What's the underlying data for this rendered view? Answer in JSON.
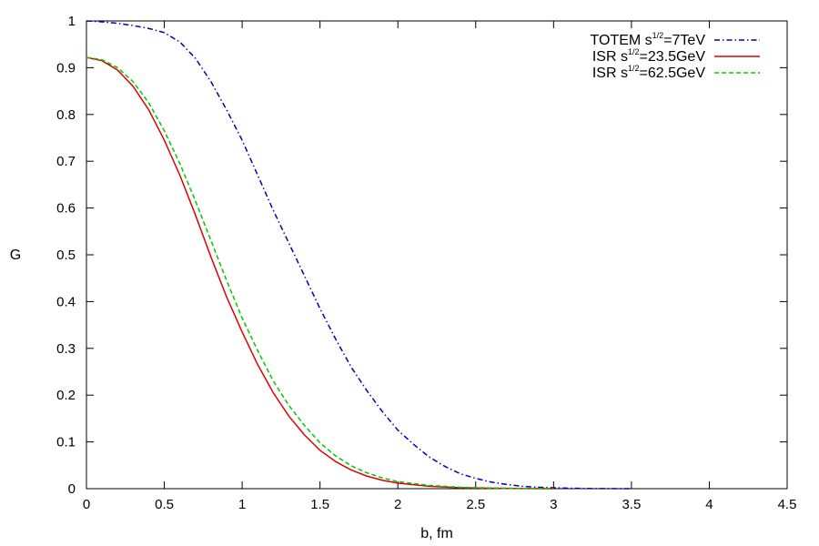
{
  "chart_data": {
    "type": "line",
    "title": "",
    "xlabel": "b, fm",
    "ylabel": "G",
    "xlim": [
      0,
      4.5
    ],
    "ylim": [
      0,
      1
    ],
    "xticks": [
      0,
      0.5,
      1,
      1.5,
      2,
      2.5,
      3,
      3.5,
      4,
      4.5
    ],
    "xtick_labels": [
      "0",
      "0.5",
      "1",
      "1.5",
      "2",
      "2.5",
      "3",
      "3.5",
      "4",
      "4.5"
    ],
    "yticks": [
      0,
      0.1,
      0.2,
      0.3,
      0.4,
      0.5,
      0.6,
      0.7,
      0.8,
      0.9,
      1
    ],
    "ytick_labels": [
      "0",
      "0.1",
      "0.2",
      "0.3",
      "0.4",
      "0.5",
      "0.6",
      "0.7",
      "0.8",
      "0.9",
      "1"
    ],
    "grid": false,
    "legend_position": "top-right",
    "series": [
      {
        "name": "TOTEM s1/2=7TeV",
        "legend_prefix": "TOTEM s",
        "legend_sup": "1/2",
        "legend_suffix": "=7TeV",
        "color": "#0000b4",
        "style": "dash-dot",
        "x": [
          0,
          0.1,
          0.2,
          0.3,
          0.4,
          0.5,
          0.6,
          0.7,
          0.8,
          0.9,
          1.0,
          1.1,
          1.2,
          1.3,
          1.4,
          1.5,
          1.6,
          1.7,
          1.8,
          1.9,
          2.0,
          2.1,
          2.2,
          2.3,
          2.4,
          2.5,
          2.6,
          2.7,
          2.8,
          2.9,
          3.0,
          3.1,
          3.2,
          3.3,
          3.4,
          3.5
        ],
        "y": [
          1.0,
          0.998,
          0.995,
          0.99,
          0.984,
          0.975,
          0.955,
          0.92,
          0.87,
          0.81,
          0.745,
          0.67,
          0.595,
          0.525,
          0.455,
          0.385,
          0.32,
          0.26,
          0.21,
          0.165,
          0.125,
          0.095,
          0.068,
          0.048,
          0.032,
          0.022,
          0.014,
          0.009,
          0.005,
          0.003,
          0.002,
          0.001,
          0.0005,
          0.0002,
          0.0001,
          0
        ]
      },
      {
        "name": "ISR s1/2=23.5GeV",
        "legend_prefix": "ISR s",
        "legend_sup": "1/2",
        "legend_suffix": "=23.5GeV",
        "color": "#e00000",
        "style": "solid",
        "x": [
          0,
          0.1,
          0.2,
          0.3,
          0.4,
          0.5,
          0.6,
          0.7,
          0.8,
          0.9,
          1.0,
          1.1,
          1.2,
          1.3,
          1.4,
          1.5,
          1.6,
          1.7,
          1.8,
          1.9,
          2.0,
          2.2,
          2.4,
          2.6,
          2.8,
          3.0
        ],
        "y": [
          0.922,
          0.915,
          0.895,
          0.86,
          0.81,
          0.745,
          0.67,
          0.585,
          0.495,
          0.41,
          0.335,
          0.265,
          0.205,
          0.155,
          0.115,
          0.082,
          0.058,
          0.04,
          0.027,
          0.018,
          0.012,
          0.005,
          0.002,
          0.001,
          0.0003,
          0
        ]
      },
      {
        "name": "ISR s1/2=62.5GeV",
        "legend_prefix": "ISR s",
        "legend_sup": "1/2",
        "legend_suffix": "=62.5GeV",
        "color": "#00c800",
        "style": "dashed",
        "x": [
          0,
          0.1,
          0.2,
          0.3,
          0.4,
          0.5,
          0.6,
          0.7,
          0.8,
          0.9,
          1.0,
          1.1,
          1.2,
          1.3,
          1.4,
          1.5,
          1.6,
          1.7,
          1.8,
          1.9,
          2.0,
          2.2,
          2.4,
          2.6,
          2.8,
          3.0
        ],
        "y": [
          0.922,
          0.917,
          0.9,
          0.87,
          0.825,
          0.765,
          0.695,
          0.615,
          0.53,
          0.445,
          0.365,
          0.295,
          0.23,
          0.178,
          0.135,
          0.098,
          0.07,
          0.049,
          0.034,
          0.023,
          0.015,
          0.007,
          0.003,
          0.0015,
          0.0005,
          0
        ]
      }
    ]
  }
}
